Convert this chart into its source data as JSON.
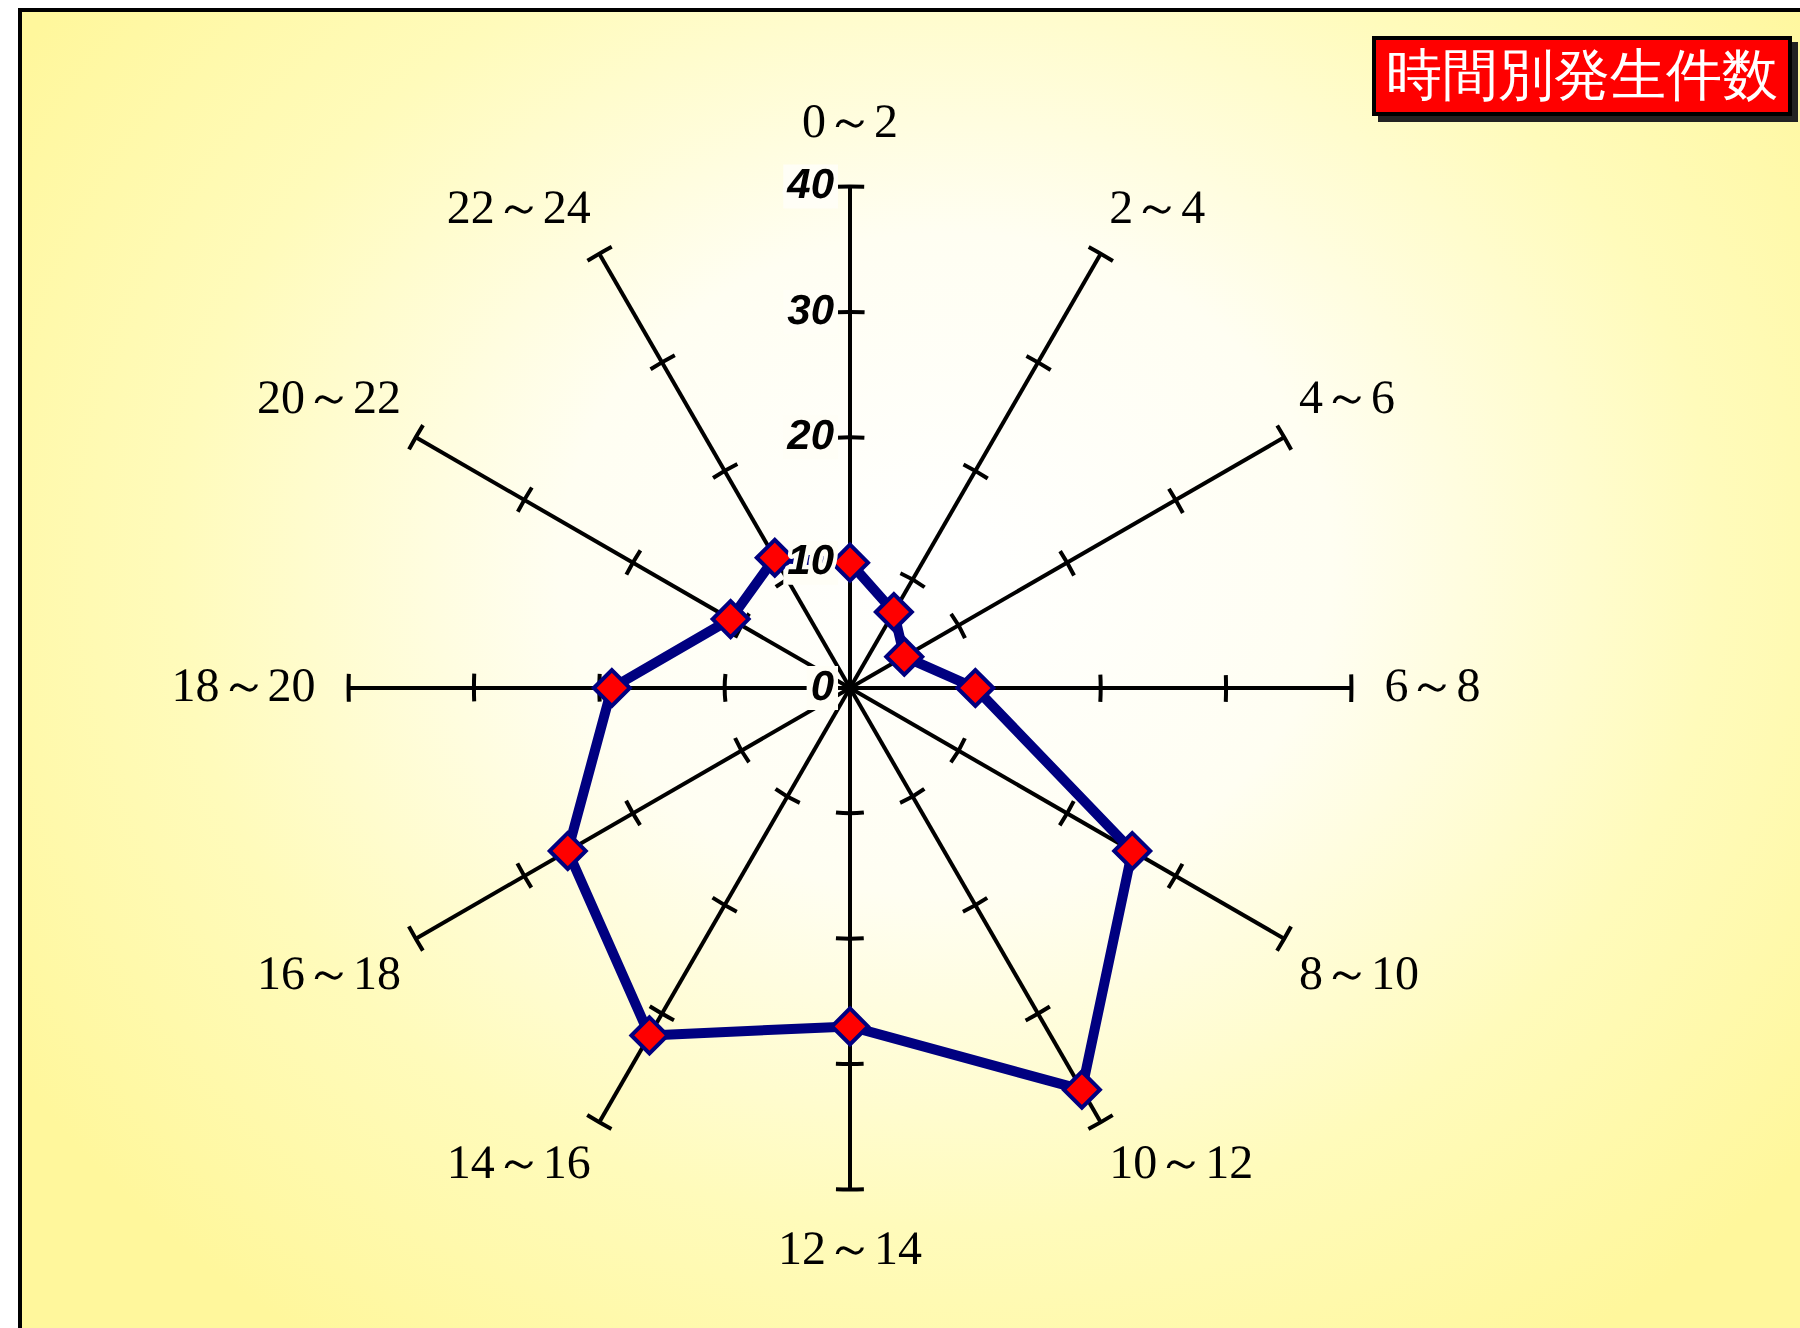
{
  "chart_data": {
    "type": "radar",
    "title": "時間別発生件数",
    "categories": [
      "0～2",
      "2～4",
      "4～6",
      "6～8",
      "8～10",
      "10～12",
      "12～14",
      "14～16",
      "16～18",
      "18～20",
      "20～22",
      "22～24"
    ],
    "series": [
      {
        "color": "#000080",
        "colors": [
          "#ff0000",
          "#ff0000",
          "#ff0000",
          "#ff0000",
          "#ff0000",
          "#ff0000",
          "#ff0000",
          "#ff0000",
          "#ff0000",
          "#ff0000",
          "#ff0000",
          "#ff0000"
        ],
        "values": [
          10,
          7,
          5,
          10,
          26,
          37,
          27,
          32,
          26,
          19,
          11,
          12
        ]
      }
    ],
    "ylim": [
      0,
      40
    ],
    "yticks": [
      0,
      10,
      20,
      30,
      40
    ],
    "marker": "diamond"
  }
}
